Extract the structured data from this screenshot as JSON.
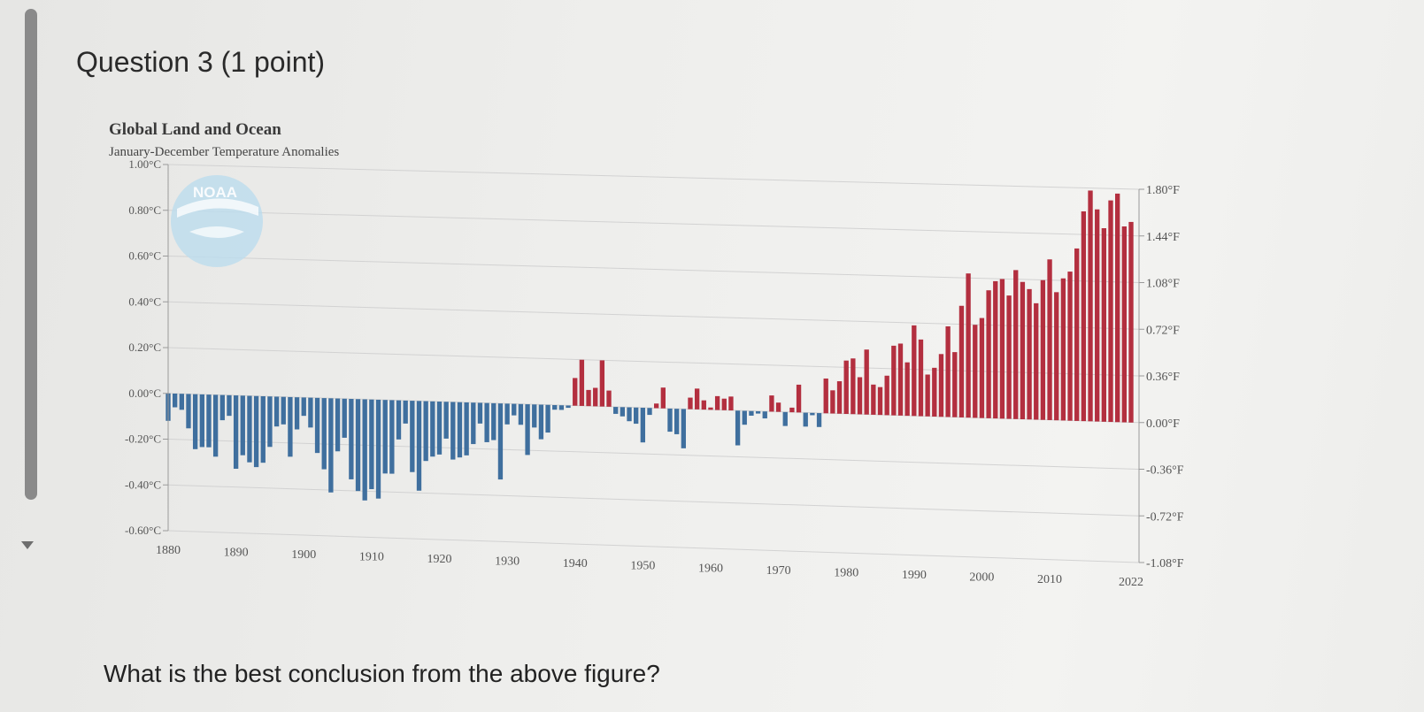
{
  "question": {
    "title": "Question 3 (1 point)",
    "prompt": "What is the best conclusion from the above figure?"
  },
  "colors": {
    "positive": "#b32f3f",
    "negative": "#3f6f9e",
    "logo": "#a9d2ea"
  },
  "icons": {
    "logo": "noaa-logo-icon"
  },
  "chart_data": {
    "type": "bar",
    "title": "Global Land and Ocean",
    "subtitle": "January-December Temperature Anomalies",
    "logo_text": "NOAA",
    "x": [
      1880,
      1881,
      1882,
      1883,
      1884,
      1885,
      1886,
      1887,
      1888,
      1889,
      1890,
      1891,
      1892,
      1893,
      1894,
      1895,
      1896,
      1897,
      1898,
      1899,
      1900,
      1901,
      1902,
      1903,
      1904,
      1905,
      1906,
      1907,
      1908,
      1909,
      1910,
      1911,
      1912,
      1913,
      1914,
      1915,
      1916,
      1917,
      1918,
      1919,
      1920,
      1921,
      1922,
      1923,
      1924,
      1925,
      1926,
      1927,
      1928,
      1929,
      1930,
      1931,
      1932,
      1933,
      1934,
      1935,
      1936,
      1937,
      1938,
      1939,
      1940,
      1941,
      1942,
      1943,
      1944,
      1945,
      1946,
      1947,
      1948,
      1949,
      1950,
      1951,
      1952,
      1953,
      1954,
      1955,
      1956,
      1957,
      1958,
      1959,
      1960,
      1961,
      1962,
      1963,
      1964,
      1965,
      1966,
      1967,
      1968,
      1969,
      1970,
      1971,
      1972,
      1973,
      1974,
      1975,
      1976,
      1977,
      1978,
      1979,
      1980,
      1981,
      1982,
      1983,
      1984,
      1985,
      1986,
      1987,
      1988,
      1989,
      1990,
      1991,
      1992,
      1993,
      1994,
      1995,
      1996,
      1997,
      1998,
      1999,
      2000,
      2001,
      2002,
      2003,
      2004,
      2005,
      2006,
      2007,
      2008,
      2009,
      2010,
      2011,
      2012,
      2013,
      2014,
      2015,
      2016,
      2017,
      2018,
      2019,
      2020,
      2021,
      2022
    ],
    "values": [
      -0.12,
      -0.06,
      -0.07,
      -0.15,
      -0.24,
      -0.23,
      -0.23,
      -0.27,
      -0.11,
      -0.09,
      -0.32,
      -0.26,
      -0.29,
      -0.31,
      -0.29,
      -0.22,
      -0.13,
      -0.12,
      -0.26,
      -0.14,
      -0.08,
      -0.13,
      -0.24,
      -0.31,
      -0.41,
      -0.23,
      -0.17,
      -0.35,
      -0.4,
      -0.44,
      -0.39,
      -0.43,
      -0.32,
      -0.32,
      -0.17,
      -0.1,
      -0.31,
      -0.39,
      -0.26,
      -0.24,
      -0.23,
      -0.16,
      -0.25,
      -0.24,
      -0.23,
      -0.18,
      -0.09,
      -0.17,
      -0.16,
      -0.33,
      -0.09,
      -0.05,
      -0.09,
      -0.22,
      -0.1,
      -0.15,
      -0.12,
      -0.02,
      -0.02,
      -0.01,
      0.12,
      0.2,
      0.07,
      0.08,
      0.2,
      0.07,
      -0.03,
      -0.04,
      -0.06,
      -0.07,
      -0.15,
      -0.03,
      0.02,
      0.09,
      -0.1,
      -0.11,
      -0.17,
      0.05,
      0.09,
      0.04,
      0.01,
      0.06,
      0.05,
      0.06,
      -0.15,
      -0.06,
      -0.02,
      -0.01,
      -0.03,
      0.07,
      0.04,
      -0.06,
      0.02,
      0.12,
      -0.06,
      -0.01,
      -0.06,
      0.15,
      0.1,
      0.14,
      0.23,
      0.24,
      0.16,
      0.28,
      0.13,
      0.12,
      0.17,
      0.3,
      0.31,
      0.23,
      0.39,
      0.33,
      0.18,
      0.21,
      0.27,
      0.39,
      0.28,
      0.48,
      0.62,
      0.4,
      0.43,
      0.55,
      0.59,
      0.6,
      0.53,
      0.64,
      0.59,
      0.56,
      0.5,
      0.6,
      0.69,
      0.55,
      0.61,
      0.64,
      0.74,
      0.9,
      0.99,
      0.91,
      0.83,
      0.95,
      0.98,
      0.84,
      0.86
    ],
    "xticks": [
      "1880",
      "1890",
      "1900",
      "1910",
      "1920",
      "1930",
      "1940",
      "1950",
      "1960",
      "1970",
      "1980",
      "1990",
      "2000",
      "2010",
      "2022"
    ],
    "left_ticks": [
      "1.00°C",
      "0.80°C",
      "0.60°C",
      "0.40°C",
      "0.20°C",
      "0.00°C",
      "-0.20°C",
      "-0.40°C",
      "-0.60°C"
    ],
    "right_ticks": [
      "1.80°F",
      "1.44°F",
      "1.08°F",
      "0.72°F",
      "0.36°F",
      "0.00°F",
      "-0.36°F",
      "-0.72°F",
      "-1.08°F"
    ],
    "ylim": [
      -0.6,
      1.0
    ],
    "grid": true,
    "legend": "none"
  }
}
